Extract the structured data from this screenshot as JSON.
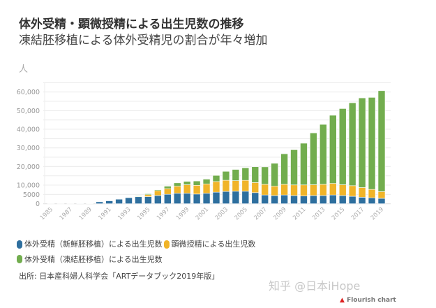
{
  "chart_data": {
    "type": "bar",
    "stacked": true,
    "title": "体外受精・顕微授精による出生児数の推移",
    "subtitle": "凍結胚移植による体外受精児の割合が年々増加",
    "ylabel": "人",
    "ylim": [
      0,
      65000
    ],
    "yticks": [
      {
        "v": 0,
        "label": "0"
      },
      {
        "v": 5000,
        "label": "5000"
      },
      {
        "v": 10000,
        "label": "10,000"
      },
      {
        "v": 20000,
        "label": "20,000"
      },
      {
        "v": 30000,
        "label": "30,000"
      },
      {
        "v": 40000,
        "label": "40,000"
      },
      {
        "v": 50000,
        "label": "50,000"
      },
      {
        "v": 60000,
        "label": "60,000"
      }
    ],
    "grid": true,
    "legend_position": "bottom",
    "categories": [
      "1985",
      "1986",
      "1987",
      "1988",
      "1989",
      "1990",
      "1991",
      "1992",
      "1993",
      "1994",
      "1995",
      "1996",
      "1997",
      "1998",
      "1999",
      "2000",
      "2001",
      "2002",
      "2003",
      "2004",
      "2005",
      "2006",
      "2007",
      "2008",
      "2009",
      "2010",
      "2011",
      "2012",
      "2013",
      "2014",
      "2015",
      "2016",
      "2017",
      "2018",
      "2019"
    ],
    "xtick_labels": [
      "1985",
      "1987",
      "1989",
      "1991",
      "1993",
      "1995",
      "1997",
      "1999",
      "2001",
      "2003",
      "2005",
      "2007",
      "2009",
      "2011",
      "2013",
      "2015",
      "2017",
      "2019"
    ],
    "series": [
      {
        "name": "体外受精（新鮮胚移植）による出生児数",
        "color": "#2e6f9e",
        "values": [
          27,
          16,
          54,
          114,
          161,
          1031,
          1661,
          2525,
          3334,
          3734,
          3810,
          4436,
          5060,
          5600,
          5600,
          5200,
          5600,
          6200,
          6608,
          6709,
          6706,
          5962,
          4700,
          4400,
          4700,
          4400,
          4200,
          4400,
          4400,
          4700,
          4400,
          4000,
          3500,
          3200,
          2900
        ]
      },
      {
        "name": "顕微授精による出生児数",
        "color": "#f0b429",
        "values": [
          0,
          0,
          0,
          0,
          0,
          0,
          0,
          0,
          0,
          300,
          1031,
          2588,
          3045,
          3800,
          4600,
          4700,
          5000,
          5700,
          5994,
          5702,
          5864,
          5401,
          5700,
          5000,
          5700,
          5700,
          5900,
          5800,
          6000,
          6200,
          5800,
          5700,
          5200,
          4500,
          3600
        ]
      },
      {
        "name": "体外受精（凍結胚移植）による出生児数",
        "color": "#72ad4e",
        "values": [
          0,
          0,
          0,
          0,
          4,
          0,
          17,
          17,
          31,
          300,
          500,
          500,
          1300,
          1800,
          1800,
          2300,
          2600,
          3300,
          4798,
          6000,
          6700,
          8500,
          9400,
          12300,
          16400,
          18900,
          22400,
          27800,
          32200,
          36600,
          40900,
          44500,
          48100,
          49400,
          54200
        ]
      }
    ]
  },
  "source": "出所: 日本産科婦人科学会「ARTデータブック2019年版」",
  "watermark": "知乎 @日本iHope",
  "flourish": "Flourish chart"
}
